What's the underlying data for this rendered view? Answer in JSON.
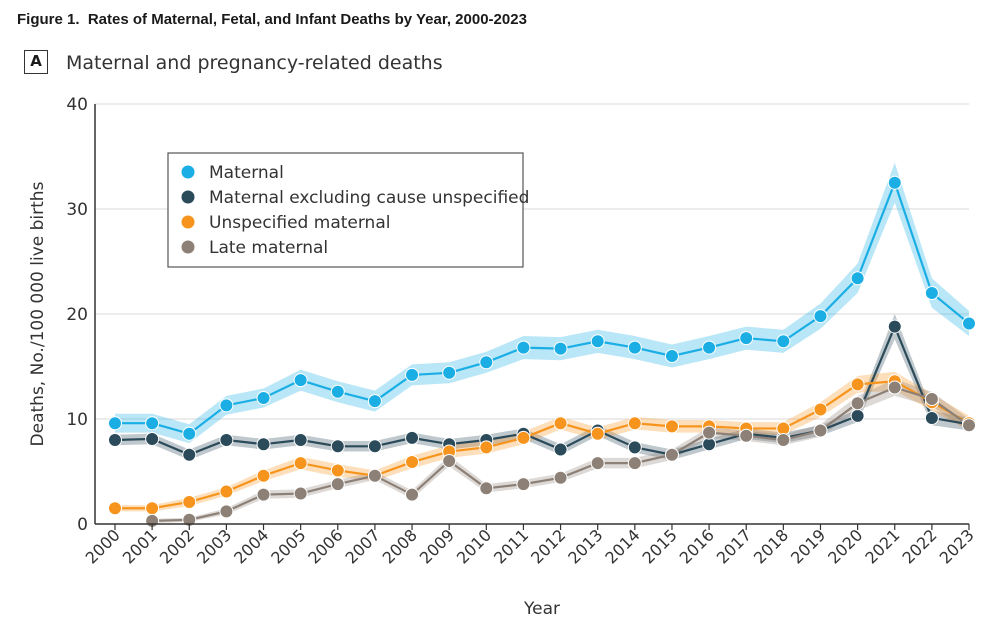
{
  "figure_title": "Figure 1.  Rates of Maternal, Fetal, and Infant Deaths by Year, 2000-2023",
  "panel": {
    "label": "A",
    "title": "Maternal and pregnancy-related deaths"
  },
  "colors": {
    "Maternal": "#1aaee5",
    "Maternal excluding cause unspecified": "#2b4a5a",
    "Unspecified maternal": "#f7941d",
    "Late maternal": "#8d8076"
  },
  "chart_data": {
    "type": "line",
    "title": "Maternal and pregnancy-related deaths",
    "xlabel": "Year",
    "ylabel": "Deaths, No./100 000 live births",
    "ylim": [
      0,
      40
    ],
    "yticks": [
      0,
      10,
      20,
      30,
      40
    ],
    "grid": true,
    "legend": "top-left",
    "x": [
      2000,
      2001,
      2002,
      2003,
      2004,
      2005,
      2006,
      2007,
      2008,
      2009,
      2010,
      2011,
      2012,
      2013,
      2014,
      2015,
      2016,
      2017,
      2018,
      2019,
      2020,
      2021,
      2022,
      2023
    ],
    "series": [
      {
        "name": "Maternal excluding cause unspecified",
        "values": [
          8.0,
          8.1,
          6.6,
          8.0,
          7.6,
          8.0,
          7.4,
          7.4,
          8.2,
          7.6,
          8.0,
          8.6,
          7.1,
          8.9,
          7.3,
          6.6,
          7.6,
          8.6,
          8.2,
          8.9,
          10.3,
          18.8,
          10.1,
          9.5
        ],
        "band": [
          0.5,
          0.5,
          0.5,
          0.5,
          0.5,
          0.5,
          0.5,
          0.5,
          0.5,
          0.5,
          0.5,
          0.5,
          0.5,
          0.5,
          0.5,
          0.5,
          0.5,
          0.5,
          0.5,
          0.5,
          0.6,
          1.2,
          0.7,
          0.6
        ]
      },
      {
        "name": "Unspecified maternal",
        "values": [
          1.5,
          1.5,
          2.1,
          3.1,
          4.6,
          5.8,
          5.1,
          4.6,
          5.9,
          6.9,
          7.3,
          8.2,
          9.6,
          8.6,
          9.6,
          9.3,
          9.3,
          9.1,
          9.1,
          10.9,
          13.3,
          13.6,
          11.6,
          9.6
        ],
        "band": [
          0.3,
          0.3,
          0.4,
          0.4,
          0.5,
          0.6,
          0.6,
          0.5,
          0.6,
          0.6,
          0.6,
          0.6,
          0.6,
          0.6,
          0.6,
          0.6,
          0.6,
          0.6,
          0.6,
          0.7,
          0.8,
          0.9,
          0.8,
          0.7
        ]
      },
      {
        "name": "Late maternal",
        "values": [
          null,
          0.3,
          0.4,
          1.2,
          2.8,
          2.9,
          3.8,
          4.6,
          2.8,
          6.0,
          3.4,
          3.8,
          4.4,
          5.8,
          5.8,
          6.6,
          8.7,
          8.4,
          8.0,
          8.9,
          11.5,
          13.0,
          11.9,
          9.4
        ],
        "band": [
          0.2,
          0.2,
          0.2,
          0.3,
          0.4,
          0.4,
          0.4,
          0.4,
          0.4,
          0.5,
          0.4,
          0.4,
          0.4,
          0.5,
          0.5,
          0.5,
          0.5,
          0.5,
          0.5,
          0.6,
          0.7,
          0.8,
          0.7,
          0.6
        ]
      },
      {
        "name": "Maternal",
        "values": [
          9.6,
          9.6,
          8.6,
          11.3,
          12.0,
          13.7,
          12.6,
          11.7,
          14.2,
          14.4,
          15.4,
          16.8,
          16.7,
          17.4,
          16.8,
          16.0,
          16.8,
          17.7,
          17.4,
          19.8,
          23.4,
          32.5,
          22.0,
          19.1
        ],
        "band": [
          0.9,
          0.9,
          0.9,
          0.9,
          0.9,
          1.0,
          1.0,
          1.0,
          1.0,
          1.0,
          1.0,
          1.1,
          1.1,
          1.1,
          1.1,
          1.1,
          1.1,
          1.1,
          1.1,
          1.2,
          1.4,
          1.9,
          1.4,
          1.2
        ]
      }
    ],
    "legend_order": [
      "Maternal",
      "Maternal excluding cause unspecified",
      "Unspecified maternal",
      "Late maternal"
    ]
  }
}
